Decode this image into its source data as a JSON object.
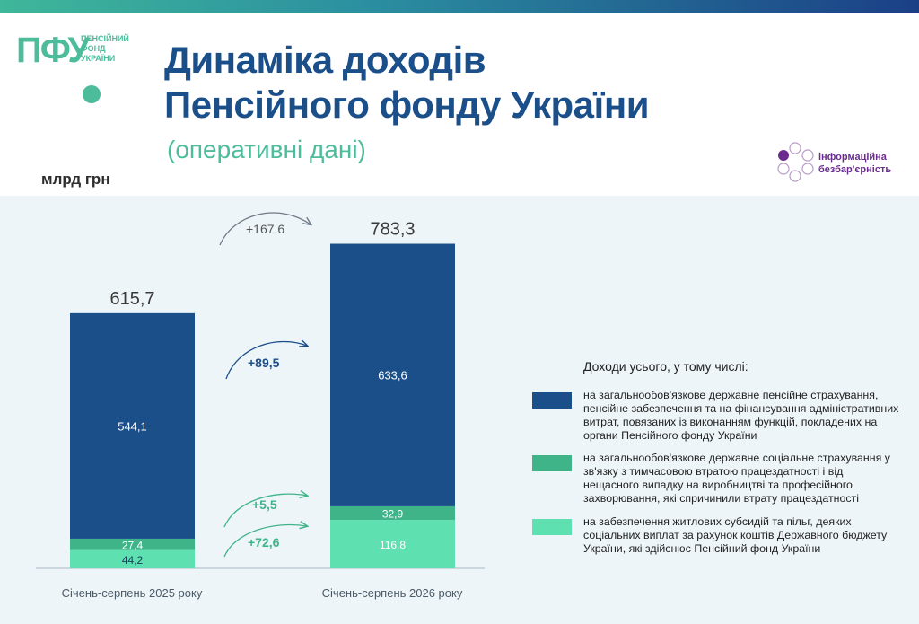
{
  "header": {
    "logo_text": "ПФУ",
    "logo_subtitle": "ПЕНСІЙНИЙ ФОНД УКРАЇНИ",
    "title_line1": "Динаміка доходів",
    "title_line2": "Пенсійного фонду України",
    "subtitle": "(оперативні дані)",
    "unit": "млрд грн",
    "badge_line1": "інформаційна",
    "badge_line2": "безбар'єрність"
  },
  "colors": {
    "series1": "#1b4f8a",
    "series2": "#3fb488",
    "series3": "#5fe0b0",
    "brand_green": "#4cbc9a",
    "badge_purple": "#6b2c8f"
  },
  "chart_data": {
    "type": "bar",
    "stacked": true,
    "categories": [
      "Січень-серпень 2025 року",
      "Січень-серпень 2026 року"
    ],
    "totals": [
      "615,7",
      "783,3"
    ],
    "series": [
      {
        "values": [
          44.2,
          116.8
        ],
        "labels": [
          "44,2",
          "116,8"
        ]
      },
      {
        "values": [
          27.4,
          32.9
        ],
        "labels": [
          "27,4",
          "32,9"
        ]
      },
      {
        "values": [
          544.1,
          633.6
        ],
        "labels": [
          "544,1",
          "633,6"
        ]
      }
    ],
    "changes": {
      "total": "+167,6",
      "series3": "+89,5",
      "series2": "+5,5",
      "series1": "+72,6"
    },
    "legend_title": "Доходи усього, у тому числі:",
    "legend": [
      "на загальнообов'язкове державне пенсійне страхування, пенсійне забезпечення та на фінансування адміністративних витрат, повязаних із виконанням функцій, покладених на органи Пенсійного фонду України",
      "на загальнообов'язкове державне соціальне страхування у зв'язку з тимчасовою втратою працездатності і від нещасного випадку на виробництві та професійного захворювання, які спричинили втрату працездатності",
      "на забезпечення житлових субсидій та пільг, деяких соціальних виплат за рахунок коштів Державного бюджету України, які здійснює Пенсійний фонд України"
    ]
  }
}
